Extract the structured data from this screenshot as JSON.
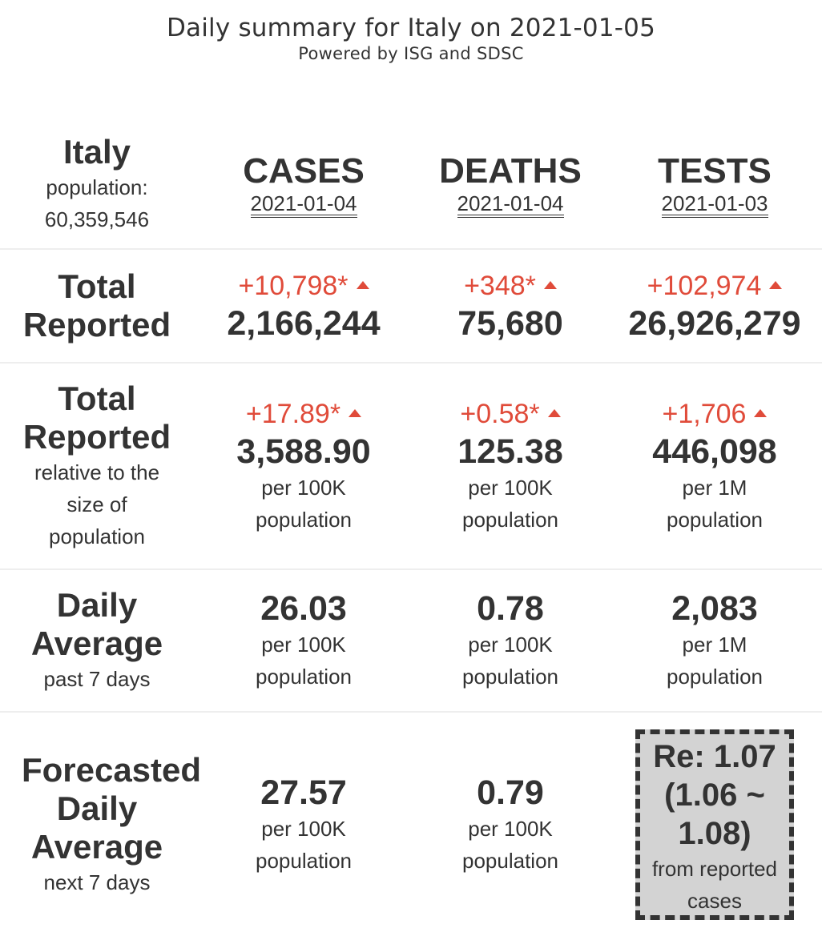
{
  "header": {
    "title": "Daily summary for Italy on 2021-01-05",
    "subtitle": "Powered by ISG and SDSC"
  },
  "country": {
    "name": "Italy",
    "population_label": "population:",
    "population_value": "60,359,546"
  },
  "columns": {
    "cases": {
      "name": "CASES",
      "date": "2021-01-04"
    },
    "deaths": {
      "name": "DEATHS",
      "date": "2021-01-04"
    },
    "tests": {
      "name": "TESTS",
      "date": "2021-01-03"
    }
  },
  "total_reported": {
    "label_line1": "Total",
    "label_line2": "Reported",
    "cases": {
      "delta": "+10,798*",
      "value": "2,166,244"
    },
    "deaths": {
      "delta": "+348*",
      "value": "75,680"
    },
    "tests": {
      "delta": "+102,974",
      "value": "26,926,279"
    }
  },
  "relative": {
    "label_line1": "Total",
    "label_line2": "Reported",
    "sub_line1": "relative to the",
    "sub_line2": "size of",
    "sub_line3": "population",
    "cases": {
      "delta": "+17.89*",
      "value": "3,588.90",
      "unit1": "per 100K",
      "unit2": "population"
    },
    "deaths": {
      "delta": "+0.58*",
      "value": "125.38",
      "unit1": "per 100K",
      "unit2": "population"
    },
    "tests": {
      "delta": "+1,706",
      "value": "446,098",
      "unit1": "per 1M",
      "unit2": "population"
    }
  },
  "daily_average": {
    "label_line1": "Daily",
    "label_line2": "Average",
    "sub": "past 7 days",
    "cases": {
      "value": "26.03",
      "unit1": "per 100K",
      "unit2": "population"
    },
    "deaths": {
      "value": "0.78",
      "unit1": "per 100K",
      "unit2": "population"
    },
    "tests": {
      "value": "2,083",
      "unit1": "per 1M",
      "unit2": "population"
    }
  },
  "forecast": {
    "label_line1": "Forecasted",
    "label_line2": "Daily",
    "label_line3": "Average",
    "sub": "next 7 days",
    "cases": {
      "value": "27.57",
      "unit1": "per 100K",
      "unit2": "population"
    },
    "deaths": {
      "value": "0.79",
      "unit1": "per 100K",
      "unit2": "population"
    },
    "re": {
      "line1": "Re: 1.07",
      "line2": "(1.06 ~",
      "line3": "1.08)",
      "sub1": "from reported",
      "sub2": "cases"
    }
  },
  "colors": {
    "text": "#333333",
    "increase": "#e04b3a",
    "re_box_bg": "#d3d3d3",
    "divider": "#eeeeee"
  },
  "icons": {
    "increase": "triangle-up-icon"
  }
}
